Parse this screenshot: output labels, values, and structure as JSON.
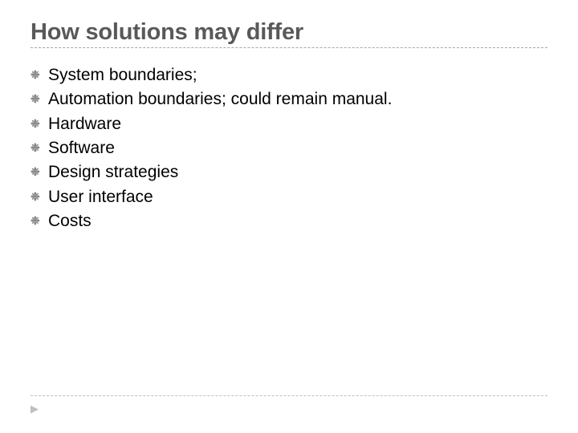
{
  "slide": {
    "title": "How solutions may differ",
    "title_color": "#595959",
    "title_fontsize": 29,
    "underline_color": "#a6a6a6",
    "bullets": [
      "System boundaries;",
      "Automation boundaries; could remain manual.",
      "Hardware",
      "Software",
      "Design strategies",
      "User interface",
      "Costs"
    ],
    "bullet_marker_glyph": "❉",
    "bullet_marker_color": "#878787",
    "bullet_text_color": "#000000",
    "bullet_fontsize": 21,
    "footer_hr_color": "#bfbfbf",
    "footer_arrow_glyph": "▶",
    "footer_arrow_color": "#bfbfbf",
    "background_color": "#ffffff"
  }
}
